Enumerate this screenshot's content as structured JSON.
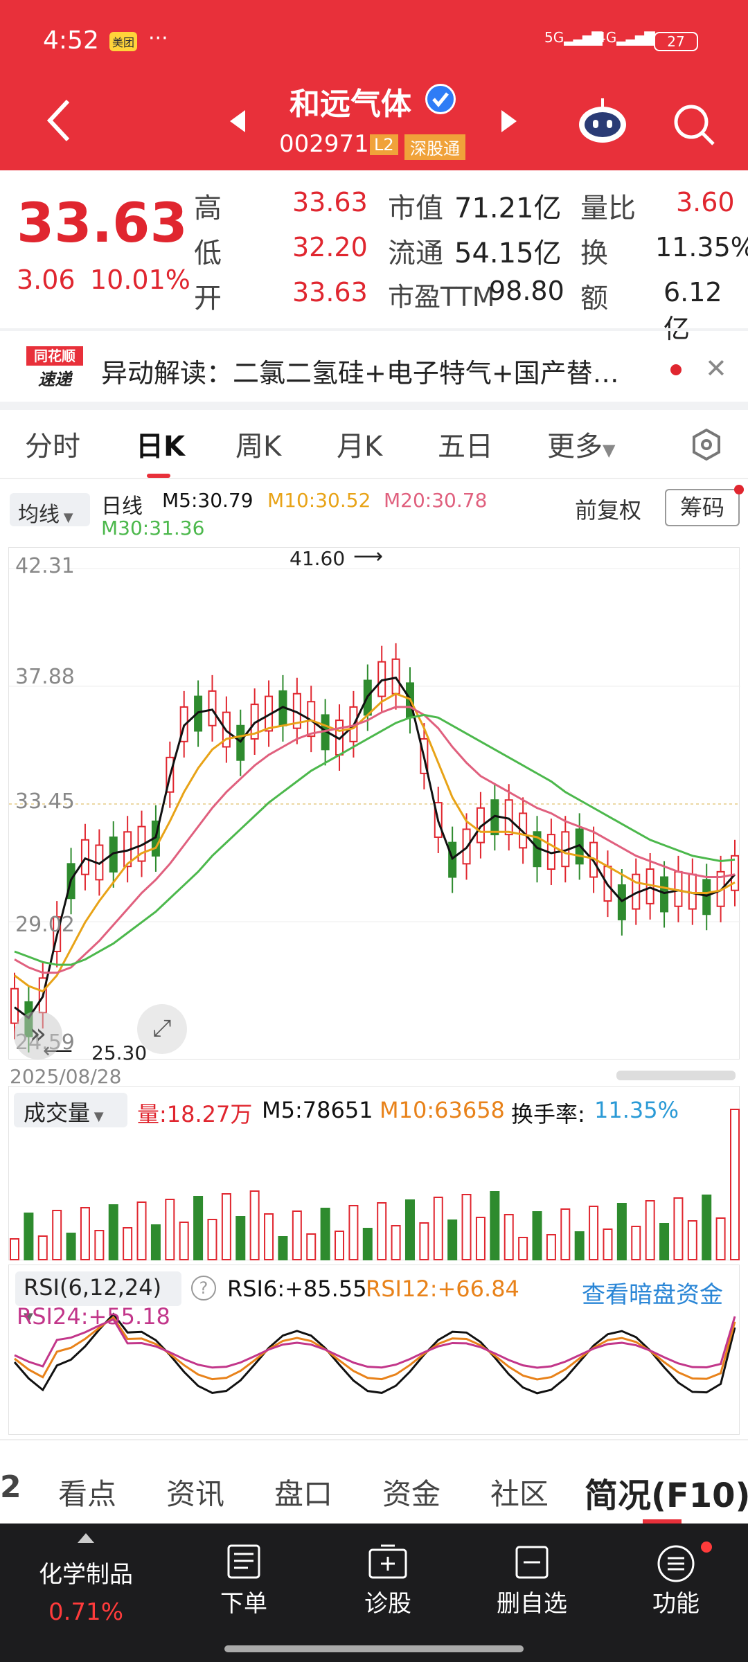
{
  "status_bar": {
    "time": "4:52",
    "app_badge": "美团",
    "dots": "···",
    "net1": "5G",
    "net2": "4G",
    "battery": "27"
  },
  "header": {
    "name": "和远气体",
    "code": "002971",
    "l2": "L2",
    "exchange": "深股通"
  },
  "quote": {
    "price": "33.63",
    "change": "3.06",
    "change_pct": "10.01%",
    "high_label": "高",
    "high": "33.63",
    "low_label": "低",
    "low": "32.20",
    "open_label": "开",
    "open": "33.63",
    "mcap_label": "市值",
    "mcap": "71.21亿",
    "float_label": "流通",
    "float": "54.15亿",
    "pe_label": "市盈TTM",
    "pe": "98.80",
    "vr_label": "量比",
    "vr": "3.60",
    "turn_label": "换",
    "turn": "11.35%",
    "amt_label": "额",
    "amt": "6.12亿"
  },
  "news": {
    "logo1": "同花顺",
    "logo2": "速递",
    "text": "异动解读：二氯二氢硅+电子特气+国产替…"
  },
  "tabs": [
    "分时",
    "日K",
    "周K",
    "月K",
    "五日",
    "更多"
  ],
  "chart_toolbar": {
    "ma_btn": "均线",
    "period": "日线",
    "m5": "M5:30.79",
    "m10": "M10:30.52",
    "m20": "M20:30.78",
    "m30": "M30:31.36",
    "fq": "前复权",
    "chips": "筹码"
  },
  "kline": {
    "ylabels": [
      "42.31",
      "37.88",
      "33.45",
      "29.02",
      "24.59"
    ],
    "max_note": "41.60",
    "min_note": "25.30",
    "date": "2025/08/28"
  },
  "volume": {
    "label": "成交量",
    "vol": "量:18.27万",
    "m5": "M5:78651",
    "m10": "M10:63658",
    "turn": "换手率:",
    "turn_val": "11.35%"
  },
  "rsi": {
    "label": "RSI(6,12,24)",
    "r6": "RSI6:+85.55",
    "r12": "RSI12:+66.84",
    "r24": "RSI24:+55.18",
    "dark": "查看暗盘资金"
  },
  "subtabs": [
    "看点",
    "资讯",
    "盘口",
    "资金",
    "社区",
    "简况(F10)"
  ],
  "bottom_nav": {
    "sector": "化学制品",
    "sector_pct": "0.71%",
    "order": "下单",
    "diagnose": "诊股",
    "remove": "删自选",
    "func": "功能"
  },
  "colors": {
    "up": "#e0262f",
    "down": "#2e8b2e",
    "brand": "#e8303a",
    "m5": "#111111",
    "m10": "#e8a317",
    "m20": "#e0607e",
    "m30": "#4cb84c"
  },
  "chart_data": {
    "type": "line",
    "title": "日线",
    "ylim": [
      24.59,
      42.31
    ],
    "series": [
      {
        "name": "M5",
        "values": [
          25.8,
          25.4,
          26.2,
          28.5,
          30.6,
          31.4,
          31.2,
          31.6,
          31.7,
          31.9,
          32.2,
          34.5,
          36.4,
          36.9,
          37.0,
          36.2,
          35.8,
          36.5,
          36.8,
          37.1,
          36.9,
          36.6,
          36.2,
          35.9,
          36.4,
          37.5,
          38.1,
          38.2,
          37.4,
          35.2,
          32.8,
          31.4,
          31.8,
          32.6,
          33.0,
          32.9,
          32.4,
          31.8,
          31.6,
          31.7,
          31.9,
          31.3,
          30.4,
          29.8,
          30.1,
          30.3,
          30.1,
          30.2,
          30.1,
          30.0,
          30.2,
          30.8
        ]
      },
      {
        "name": "M10",
        "values": [
          27.0,
          26.6,
          26.4,
          27.0,
          28.0,
          29.0,
          29.8,
          30.5,
          31.2,
          31.6,
          31.8,
          32.8,
          33.9,
          34.8,
          35.5,
          35.9,
          36.0,
          36.1,
          36.3,
          36.4,
          36.5,
          36.6,
          36.4,
          36.2,
          36.3,
          36.8,
          37.3,
          37.6,
          37.4,
          36.3,
          35.0,
          33.7,
          32.8,
          32.4,
          32.4,
          32.4,
          32.3,
          32.2,
          31.9,
          31.6,
          31.5,
          31.4,
          31.1,
          30.8,
          30.5,
          30.4,
          30.3,
          30.2,
          30.1,
          30.1,
          30.2,
          30.5
        ]
      },
      {
        "name": "M20",
        "values": [
          27.6,
          27.3,
          27.1,
          27.1,
          27.3,
          27.8,
          28.3,
          28.9,
          29.5,
          30.1,
          30.6,
          31.2,
          31.9,
          32.6,
          33.3,
          33.9,
          34.4,
          34.9,
          35.3,
          35.6,
          35.9,
          36.1,
          36.2,
          36.3,
          36.4,
          36.6,
          36.9,
          37.1,
          37.1,
          36.8,
          36.3,
          35.6,
          35.0,
          34.5,
          34.2,
          33.9,
          33.6,
          33.3,
          33.1,
          32.8,
          32.6,
          32.4,
          32.1,
          31.8,
          31.5,
          31.3,
          31.1,
          30.9,
          30.8,
          30.7,
          30.7,
          30.8
        ]
      },
      {
        "name": "M30",
        "values": [
          27.9,
          27.7,
          27.5,
          27.4,
          27.4,
          27.6,
          27.9,
          28.2,
          28.6,
          29.0,
          29.4,
          29.9,
          30.4,
          30.9,
          31.5,
          32.0,
          32.5,
          33.0,
          33.5,
          33.9,
          34.3,
          34.7,
          35.0,
          35.3,
          35.6,
          35.9,
          36.2,
          36.5,
          36.7,
          36.8,
          36.7,
          36.4,
          36.1,
          35.8,
          35.5,
          35.2,
          34.9,
          34.6,
          34.3,
          33.9,
          33.6,
          33.3,
          33.0,
          32.7,
          32.4,
          32.1,
          31.9,
          31.7,
          31.5,
          31.4,
          31.3,
          31.36
        ]
      }
    ]
  }
}
